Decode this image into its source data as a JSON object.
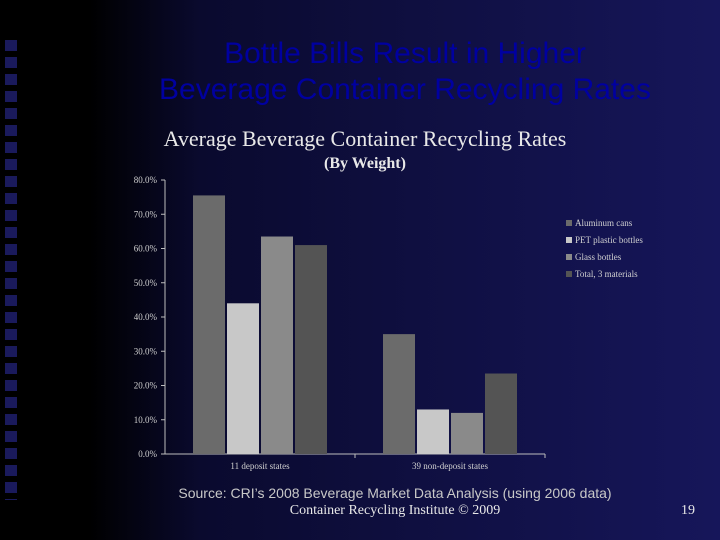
{
  "slide": {
    "title_line1": "Bottle Bills Result in Higher",
    "title_line2": "Beverage Container Recycling Rates",
    "source": "Source: CRI’s 2008 Beverage Market Data Analysis (using 2006 data)",
    "credit": "Container Recycling Institute © 2009",
    "page_number": "19",
    "colors": {
      "title": "#0000a0",
      "background": "#16165a"
    }
  },
  "chart_data": {
    "type": "bar",
    "title": "Average Beverage Container Recycling Rates",
    "subtitle": "(By Weight)",
    "categories": [
      "11 deposit states",
      "39 non-deposit states"
    ],
    "series": [
      {
        "name": "Aluminum cans",
        "values": [
          75.5,
          35.0
        ],
        "color": "#6b6b6b"
      },
      {
        "name": "PET plastic bottles",
        "values": [
          44.0,
          13.0
        ],
        "color": "#c8c8c8"
      },
      {
        "name": "Glass bottles",
        "values": [
          63.5,
          12.0
        ],
        "color": "#8a8a8a"
      },
      {
        "name": "Total, 3 materials",
        "values": [
          61.0,
          23.5
        ],
        "color": "#545454"
      }
    ],
    "ylim": [
      0,
      80
    ],
    "yticks": [
      "0.0%",
      "10.0%",
      "20.0%",
      "30.0%",
      "40.0%",
      "50.0%",
      "60.0%",
      "70.0%",
      "80.0%"
    ],
    "grid": false,
    "legend_position": "right"
  }
}
